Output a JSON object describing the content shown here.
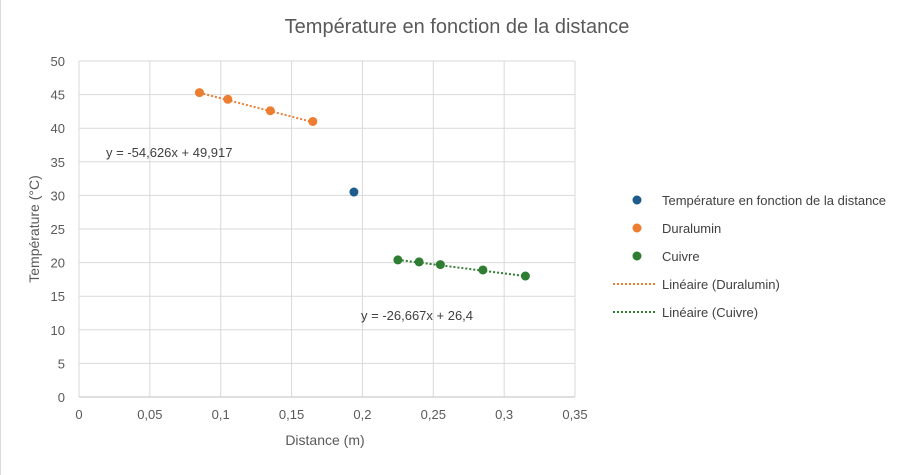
{
  "chart_data": {
    "type": "scatter",
    "title": "Température en fonction de la distance",
    "xlabel": "Distance (m)",
    "ylabel": "Température (°C)",
    "xlim": [
      0,
      0.35
    ],
    "ylim": [
      0,
      50
    ],
    "x_ticks": [
      "0",
      "0,05",
      "0,1",
      "0,15",
      "0,2",
      "0,25",
      "0,3",
      "0,35"
    ],
    "y_ticks": [
      "0",
      "5",
      "10",
      "15",
      "20",
      "25",
      "30",
      "35",
      "40",
      "45",
      "50"
    ],
    "grid": true,
    "legend_position": "right",
    "series": [
      {
        "name": "Température en fonction de la distance",
        "color": "#1f5c8b",
        "points": [
          [
            0.194,
            30.5
          ]
        ]
      },
      {
        "name": "Duralumin",
        "color": "#ed7d31",
        "points": [
          [
            0.085,
            45.3
          ],
          [
            0.105,
            44.3
          ],
          [
            0.135,
            42.6
          ],
          [
            0.165,
            41.0
          ]
        ]
      },
      {
        "name": "Cuivre",
        "color": "#2e7d32",
        "points": [
          [
            0.225,
            20.4
          ],
          [
            0.24,
            20.1
          ],
          [
            0.255,
            19.7
          ],
          [
            0.285,
            18.9
          ],
          [
            0.315,
            18.0
          ]
        ]
      }
    ],
    "trendlines": [
      {
        "name": "Linéaire (Duralumin)",
        "color": "#ed7d31",
        "slope": -54.626,
        "intercept": 49.917,
        "x_range": [
          0.085,
          0.165
        ],
        "equation": "y = -54,626x + 49,917"
      },
      {
        "name": "Linéaire (Cuivre)",
        "color": "#2e7d32",
        "slope": -26.667,
        "intercept": 26.4,
        "x_range": [
          0.225,
          0.315
        ],
        "equation": "y = -26,667x + 26,4"
      }
    ]
  }
}
